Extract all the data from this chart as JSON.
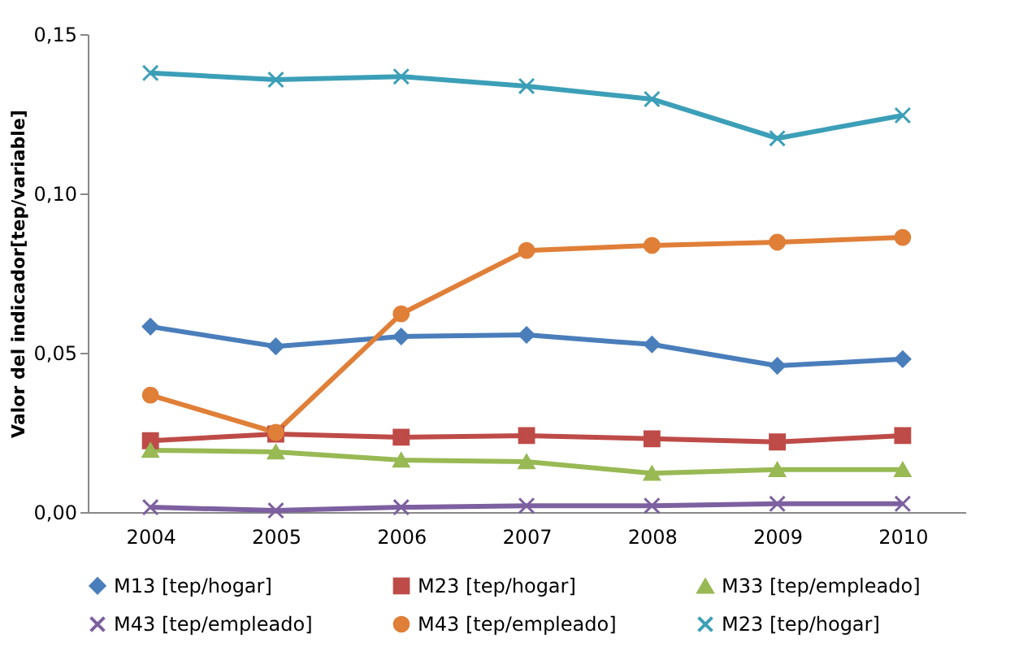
{
  "chart_data": {
    "type": "line",
    "ylabel": "Valor del indicador[tep/variable]",
    "categories": [
      "2004",
      "2005",
      "2006",
      "2007",
      "2008",
      "2009",
      "2010"
    ],
    "series": [
      {
        "name": "M13 [tep/hogar]",
        "color": "#4a7ebb",
        "marker": "diamond",
        "values": [
          0.0582,
          0.052,
          0.0551,
          0.0556,
          0.0526,
          0.0459,
          0.048
        ]
      },
      {
        "name": "M23 [tep/hogar]",
        "color": "#be4b48",
        "marker": "square",
        "values": [
          0.0224,
          0.0245,
          0.0235,
          0.024,
          0.023,
          0.022,
          0.024
        ]
      },
      {
        "name": "M33 [tep/empleado]",
        "color": "#98b954",
        "marker": "triangle",
        "values": [
          0.0194,
          0.0189,
          0.0163,
          0.0158,
          0.0122,
          0.0133,
          0.0133
        ]
      },
      {
        "name": "M43 [tep/empleado]",
        "color": "#7d60a0",
        "marker": "cross",
        "values": [
          0.0015,
          0.0005,
          0.0015,
          0.002,
          0.002,
          0.0026,
          0.0026
        ]
      },
      {
        "name": "M43 [tep/empleado]",
        "color": "#e07f38",
        "marker": "circle",
        "values": [
          0.0367,
          0.025,
          0.0622,
          0.0821,
          0.0837,
          0.0847,
          0.0862
        ]
      },
      {
        "name": "M23 [tep/hogar]",
        "color": "#3c9fb8",
        "marker": "cross",
        "values": [
          0.1378,
          0.1357,
          0.1367,
          0.1337,
          0.1296,
          0.1173,
          0.1245
        ]
      }
    ],
    "ylim": [
      0,
      0.15
    ],
    "yticks": [
      {
        "value": 0,
        "label": "0,00"
      },
      {
        "value": 0.05,
        "label": "0,05"
      },
      {
        "value": 0.1,
        "label": "0,10"
      },
      {
        "value": 0.15,
        "label": "0,15"
      }
    ],
    "grid": false,
    "legend": "bottom"
  }
}
